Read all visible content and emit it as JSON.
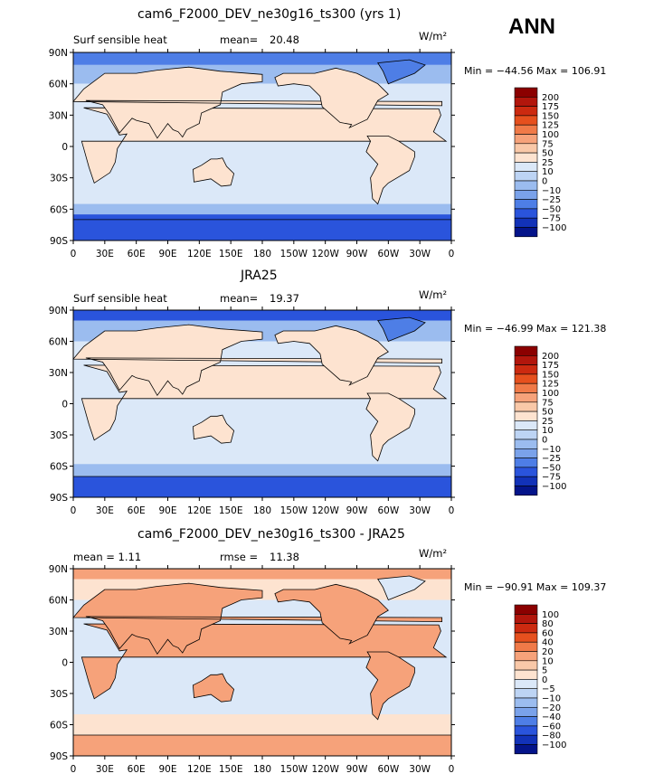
{
  "header": {
    "season": "ANN"
  },
  "panels": [
    {
      "title": "cam6_F2000_DEV_ne30g16_ts300 (yrs 1)",
      "left_label": "Surf sensible heat",
      "stat_label": "mean=",
      "stat_value": "20.48",
      "units": "W/m²",
      "min_max": "Min = −44.56  Max = 106.91",
      "colorbar": [
        "200",
        "175",
        "150",
        "125",
        "100",
        "75",
        "50",
        "25",
        "10",
        "0",
        "−10",
        "−25",
        "−50",
        "−75",
        "−100"
      ]
    },
    {
      "title": "JRA25",
      "left_label": "Surf sensible heat",
      "stat_label": "mean=",
      "stat_value": "19.37",
      "units": "W/m²",
      "min_max": "Min = −46.99  Max = 121.38",
      "colorbar": [
        "200",
        "175",
        "150",
        "125",
        "100",
        "75",
        "50",
        "25",
        "10",
        "0",
        "−10",
        "−25",
        "−50",
        "−75",
        "−100"
      ]
    },
    {
      "title": "cam6_F2000_DEV_ne30g16_ts300 - JRA25",
      "left_label": "mean =    1.11",
      "stat_label": "rmse =",
      "stat_value": "11.38",
      "units": "W/m²",
      "min_max": "Min = −90.91  Max = 109.37",
      "colorbar": [
        "100",
        "80",
        "60",
        "40",
        "20",
        "10",
        "5",
        "0",
        "−5",
        "−10",
        "−20",
        "−40",
        "−60",
        "−80",
        "−100"
      ]
    }
  ],
  "lat_ticks": [
    "90N",
    "60N",
    "30N",
    "0",
    "30S",
    "60S",
    "90S"
  ],
  "lon_ticks": [
    "0",
    "30E",
    "60E",
    "90E",
    "120E",
    "150E",
    "180",
    "150W",
    "120W",
    "90W",
    "60W",
    "30W",
    "0"
  ],
  "colors": {
    "abs_scale": [
      "#8b0000",
      "#b2160c",
      "#cc2a10",
      "#e6501e",
      "#f07a48",
      "#f6a27a",
      "#f9c8a8",
      "#fde3d0",
      "#dbe8f8",
      "#bdd4f4",
      "#9bbcef",
      "#7aa2ea",
      "#4e7ee6",
      "#2a54dc",
      "#1232b8",
      "#04148a"
    ],
    "diff_scale": [
      "#8b0000",
      "#b2160c",
      "#cc2a10",
      "#e6501e",
      "#f07a48",
      "#f6a27a",
      "#f9c8a8",
      "#fde3d0",
      "#dbe8f8",
      "#bdd4f4",
      "#9bbcef",
      "#7aa2ea",
      "#4e7ee6",
      "#2a54dc",
      "#1232b8",
      "#04148a"
    ]
  }
}
